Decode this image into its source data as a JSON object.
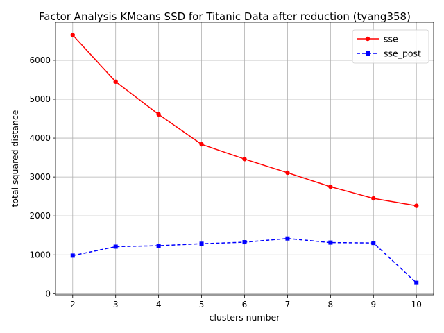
{
  "chart_data": {
    "type": "line",
    "title": "Factor Analysis KMeans SSD for Titanic Data after reduction (tyang358)",
    "xlabel": "clusters number",
    "ylabel": "total squared distance",
    "x": [
      2,
      3,
      4,
      5,
      6,
      7,
      8,
      9,
      10
    ],
    "xlim": [
      1.6,
      10.4
    ],
    "ylim": [
      -30,
      6980
    ],
    "x_ticks": [
      2,
      3,
      4,
      5,
      6,
      7,
      8,
      9,
      10
    ],
    "y_ticks": [
      0,
      1000,
      2000,
      3000,
      4000,
      5000,
      6000
    ],
    "grid": true,
    "legend_position": "top-right",
    "series": [
      {
        "name": "sse",
        "color": "#ff0000",
        "line_style": "solid",
        "marker": "circle",
        "values": [
          6650,
          5450,
          4610,
          3840,
          3460,
          3110,
          2750,
          2450,
          2260
        ]
      },
      {
        "name": "sse_post",
        "color": "#0000ff",
        "line_style": "dashed",
        "marker": "square",
        "values": [
          980,
          1210,
          1235,
          1285,
          1325,
          1420,
          1315,
          1305,
          280
        ]
      }
    ]
  }
}
